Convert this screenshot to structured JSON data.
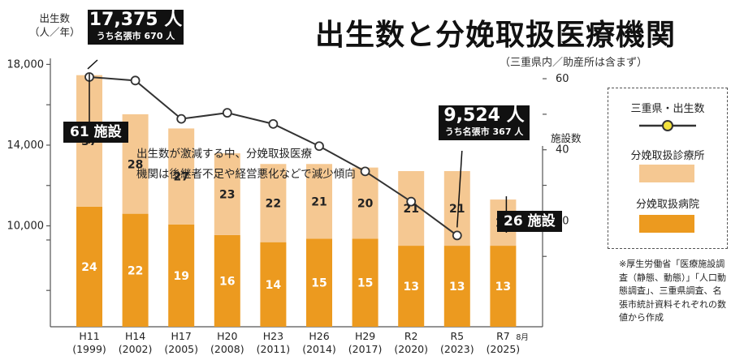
{
  "title": "出生数と分娩取扱医療機関",
  "subtitle": "（三重県内／助産所は含まず）",
  "y_axis_label_line1": "出生数",
  "y_axis_label_line2": "（人／年）",
  "y2_axis_label": "施設数",
  "annotation_line1": "出生数が激減する中、分娩取扱医療",
  "annotation_line2": "機関は後継者不足や経営悪化などで減少傾向",
  "callout_first": {
    "big": "17,375 人",
    "small": "うち名張市 670 人"
  },
  "callout_last": {
    "big": "9,524 人",
    "small": "うち名張市 367 人"
  },
  "badge_first": "61 施設",
  "badge_last": "26 施設",
  "legend": {
    "line_label": "三重県・出生数",
    "clinic_label": "分娩取扱診療所",
    "hospital_label": "分娩取扱病院"
  },
  "source_note": "※厚生労働省「医療施設調査（静態、動態）」「人口動態調査」、三重県調査、名張市統計資料それぞれの数値から作成",
  "colors": {
    "clinic": "#f5c892",
    "hospital": "#ec9a1f",
    "line": "#333333",
    "marker_fill": "#ffffff",
    "legend_marker_fill": "#f3e23c",
    "callout_bg": "#111111"
  },
  "chart_data": {
    "type": "bar",
    "title": "出生数と分娩取扱医療機関",
    "categories": [
      "H11",
      "H14",
      "H17",
      "H20",
      "H23",
      "H26",
      "H29",
      "R2",
      "R5",
      "R7"
    ],
    "category_years": [
      "(1999)",
      "(2002)",
      "(2005)",
      "(2008)",
      "(2011)",
      "(2014)",
      "(2017)",
      "(2020)",
      "(2023)",
      "(2025)"
    ],
    "last_category_note": "8月",
    "series": [
      {
        "name": "分娩取扱病院",
        "axis": "right",
        "values": [
          24,
          22,
          19,
          16,
          14,
          15,
          15,
          13,
          13,
          13
        ]
      },
      {
        "name": "分娩取扱診療所",
        "axis": "right",
        "values": [
          37,
          28,
          27,
          23,
          22,
          21,
          20,
          21,
          21,
          13
        ]
      },
      {
        "name": "三重県・出生数",
        "type": "line",
        "axis": "left",
        "values": [
          17375,
          17200,
          15300,
          15600,
          15050,
          13950,
          12700,
          11200,
          9524,
          null
        ]
      }
    ],
    "left_axis": {
      "ticks": [
        10000,
        14000,
        18000
      ],
      "tick_labels": [
        "10,000",
        "14,000",
        "18,000"
      ],
      "range": [
        5000,
        18700
      ]
    },
    "right_axis": {
      "ticks": [
        20,
        40,
        60
      ],
      "tick_labels": [
        "20",
        "40",
        "60"
      ],
      "range": [
        -9.8,
        68
      ]
    }
  }
}
